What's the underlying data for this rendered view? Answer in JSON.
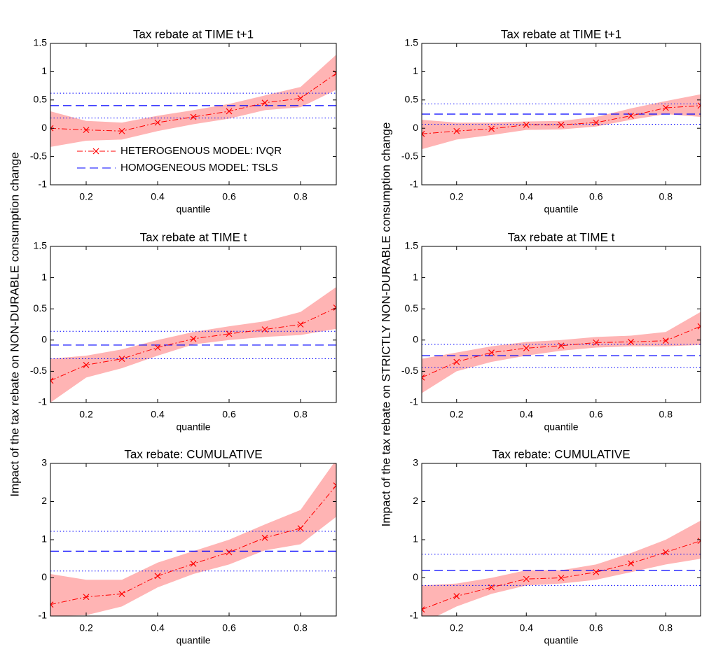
{
  "chart_data": [
    {
      "type": "quantile",
      "title": "Tax rebate at TIME t+1",
      "xlabel": "quantile",
      "x": [
        0.1,
        0.2,
        0.3,
        0.4,
        0.5,
        0.6,
        0.7,
        0.8,
        0.9
      ],
      "xlim": [
        0.1,
        0.9
      ],
      "xticks": [
        0.2,
        0.4,
        0.6,
        0.8
      ],
      "ylim": [
        -1,
        1.5
      ],
      "yticks": [
        -1,
        -0.5,
        0,
        0.5,
        1,
        1.5
      ],
      "ivqr": {
        "values": [
          0,
          -0.03,
          -0.05,
          0.1,
          0.2,
          0.3,
          0.45,
          0.53,
          0.97
        ],
        "lower": [
          -0.33,
          -0.22,
          -0.2,
          -0.05,
          0.07,
          0.17,
          0.32,
          0.37,
          0.68
        ],
        "upper": [
          0.3,
          0.13,
          0.1,
          0.22,
          0.32,
          0.43,
          0.58,
          0.73,
          1.3
        ]
      },
      "tsls": {
        "value": 0.4,
        "lower": 0.18,
        "upper": 0.62
      },
      "legend": [
        "HETEROGENOUS MODEL: IVQR",
        "HOMOGENEOUS MODEL: TSLS"
      ],
      "legend_position": "lower right",
      "colors": {
        "ivqr": "#ff0000",
        "band": "#ffb4b4",
        "tsls": "#0000ff"
      }
    },
    {
      "type": "quantile",
      "title": "Tax rebate at TIME t+1",
      "xlabel": "quantile",
      "x": [
        0.1,
        0.2,
        0.3,
        0.4,
        0.5,
        0.6,
        0.7,
        0.8,
        0.9
      ],
      "xlim": [
        0.1,
        0.9
      ],
      "xticks": [
        0.2,
        0.4,
        0.6,
        0.8
      ],
      "ylim": [
        -1,
        1.5
      ],
      "yticks": [
        -1,
        -0.5,
        0,
        0.5,
        1,
        1.5
      ],
      "ivqr": {
        "values": [
          -0.1,
          -0.05,
          -0.01,
          0.06,
          0.06,
          0.1,
          0.22,
          0.36,
          0.4
        ],
        "lower": [
          -0.37,
          -0.2,
          -0.12,
          -0.03,
          -0.02,
          0.03,
          0.15,
          0.25,
          0.2
        ],
        "upper": [
          0.15,
          0.1,
          0.1,
          0.12,
          0.13,
          0.2,
          0.35,
          0.48,
          0.6
        ]
      },
      "tsls": {
        "value": 0.25,
        "lower": 0.07,
        "upper": 0.43
      },
      "colors": {
        "ivqr": "#ff0000",
        "band": "#ffb4b4",
        "tsls": "#0000ff"
      }
    },
    {
      "type": "quantile",
      "title": "Tax rebate at TIME t",
      "xlabel": "quantile",
      "ylabel": "Impact of the tax rebate on NON-DURABLE consumption change",
      "x": [
        0.1,
        0.2,
        0.3,
        0.4,
        0.5,
        0.6,
        0.7,
        0.8,
        0.9
      ],
      "xlim": [
        0.1,
        0.9
      ],
      "xticks": [
        0.2,
        0.4,
        0.6,
        0.8
      ],
      "ylim": [
        -1,
        1.5
      ],
      "yticks": [
        -1,
        -0.5,
        0,
        0.5,
        1,
        1.5
      ],
      "ivqr": {
        "values": [
          -0.65,
          -0.4,
          -0.3,
          -0.12,
          0.02,
          0.1,
          0.17,
          0.25,
          0.52
        ],
        "lower": [
          -1,
          -0.6,
          -0.45,
          -0.25,
          -0.07,
          0,
          0.05,
          0.08,
          0.18
        ],
        "upper": [
          -0.3,
          -0.25,
          -0.15,
          0,
          0.13,
          0.22,
          0.3,
          0.45,
          0.85
        ]
      },
      "tsls": {
        "value": -0.08,
        "lower": -0.3,
        "upper": 0.14
      },
      "colors": {
        "ivqr": "#ff0000",
        "band": "#ffb4b4",
        "tsls": "#0000ff"
      }
    },
    {
      "type": "quantile",
      "title": "Tax rebate at TIME t",
      "xlabel": "quantile",
      "ylabel": "Impact of the tax rebate on STRICTLY NON-DURABLE consumption change",
      "x": [
        0.1,
        0.2,
        0.3,
        0.4,
        0.5,
        0.6,
        0.7,
        0.8,
        0.9
      ],
      "xlim": [
        0.1,
        0.9
      ],
      "xticks": [
        0.2,
        0.4,
        0.6,
        0.8
      ],
      "ylim": [
        -1,
        1.5
      ],
      "yticks": [
        -1,
        -0.5,
        0,
        0.5,
        1,
        1.5
      ],
      "ivqr": {
        "values": [
          -0.6,
          -0.35,
          -0.2,
          -0.13,
          -0.09,
          -0.04,
          -0.03,
          -0.01,
          0.22
        ],
        "lower": [
          -0.85,
          -0.5,
          -0.35,
          -0.25,
          -0.17,
          -0.12,
          -0.1,
          -0.1,
          -0.08
        ],
        "upper": [
          -0.3,
          -0.2,
          -0.1,
          -0.03,
          0,
          0.05,
          0.07,
          0.13,
          0.45
        ]
      },
      "tsls": {
        "value": -0.25,
        "lower": -0.44,
        "upper": -0.07
      },
      "colors": {
        "ivqr": "#ff0000",
        "band": "#ffb4b4",
        "tsls": "#0000ff"
      }
    },
    {
      "type": "quantile",
      "title": "Tax rebate: CUMULATIVE",
      "xlabel": "quantile",
      "x": [
        0.1,
        0.2,
        0.3,
        0.4,
        0.5,
        0.6,
        0.7,
        0.8,
        0.9
      ],
      "xlim": [
        0.1,
        0.9
      ],
      "xticks": [
        0.2,
        0.4,
        0.6,
        0.8
      ],
      "ylim": [
        -1,
        3
      ],
      "yticks": [
        -1,
        0,
        1,
        2,
        3
      ],
      "ivqr": {
        "values": [
          -0.7,
          -0.5,
          -0.42,
          0.05,
          0.37,
          0.67,
          1.05,
          1.3,
          2.42
        ],
        "lower": [
          -1,
          -0.98,
          -0.75,
          -0.25,
          0.1,
          0.35,
          0.72,
          0.88,
          1.6
        ],
        "upper": [
          0.1,
          -0.05,
          -0.05,
          0.4,
          0.7,
          1,
          1.4,
          1.78,
          3.1
        ]
      },
      "tsls": {
        "value": 0.7,
        "lower": 0.18,
        "upper": 1.22
      },
      "colors": {
        "ivqr": "#ff0000",
        "band": "#ffb4b4",
        "tsls": "#0000ff"
      }
    },
    {
      "type": "quantile",
      "title": "Tax rebate: CUMULATIVE",
      "xlabel": "quantile",
      "x": [
        0.1,
        0.2,
        0.3,
        0.4,
        0.5,
        0.6,
        0.7,
        0.8,
        0.9
      ],
      "xlim": [
        0.1,
        0.9
      ],
      "xticks": [
        0.2,
        0.4,
        0.6,
        0.8
      ],
      "ylim": [
        -1,
        3
      ],
      "yticks": [
        -1,
        0,
        1,
        2,
        3
      ],
      "ivqr": {
        "values": [
          -0.83,
          -0.48,
          -0.25,
          -0.03,
          0,
          0.15,
          0.38,
          0.67,
          0.97
        ],
        "lower": [
          -1.2,
          -0.75,
          -0.42,
          -0.2,
          -0.15,
          -0.05,
          0.15,
          0.35,
          0.5
        ],
        "upper": [
          -0.2,
          -0.15,
          0,
          0.2,
          0.2,
          0.35,
          0.65,
          1,
          1.5
        ]
      },
      "tsls": {
        "value": 0.2,
        "lower": -0.2,
        "upper": 0.62
      },
      "colors": {
        "ivqr": "#ff0000",
        "band": "#ffb4b4",
        "tsls": "#0000ff"
      }
    }
  ]
}
